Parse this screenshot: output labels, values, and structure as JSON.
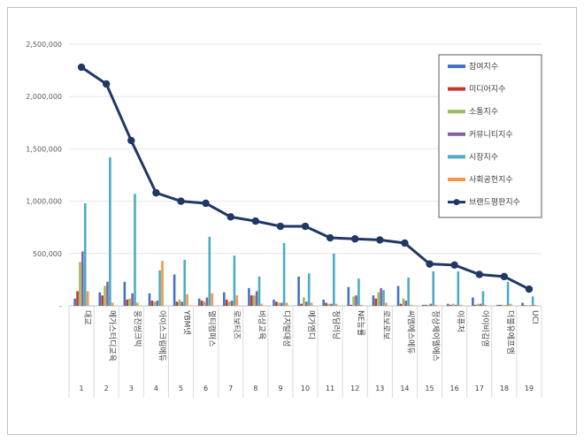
{
  "chart_data": {
    "type": "bar",
    "title": "",
    "xlabel": "",
    "ylabel": "",
    "ylim": [
      0,
      2500000
    ],
    "yticks": [
      "2,500,000",
      "2,000,000",
      "1,500,000",
      "1,000,000",
      "500,000",
      "-"
    ],
    "grid": true,
    "legend_position": "top-right",
    "ranks": [
      "1",
      "2",
      "3",
      "4",
      "5",
      "6",
      "7",
      "8",
      "9",
      "10",
      "11",
      "12",
      "13",
      "14",
      "15",
      "16",
      "17",
      "18",
      "19"
    ],
    "categories": [
      "대교",
      "메가스터디교육",
      "웅진씽크빅",
      "아이스크림에듀",
      "YBM넷",
      "멀티캠퍼스",
      "로보티즈",
      "비상교육",
      "디지털대성",
      "메가엠디",
      "청담러닝",
      "NE능률",
      "로보로보",
      "씨엠에스에듀",
      "정상제이엘에스",
      "이퓨처",
      "아이비김영",
      "더블유에프엠",
      "UCI"
    ],
    "series": [
      {
        "name": "참여지수",
        "color": "#4472c4",
        "values": [
          70000,
          130000,
          230000,
          120000,
          300000,
          70000,
          130000,
          170000,
          60000,
          280000,
          60000,
          180000,
          100000,
          190000,
          10000,
          20000,
          80000,
          10000,
          30000
        ]
      },
      {
        "name": "미디어지수",
        "color": "#c0392b",
        "values": [
          140000,
          100000,
          60000,
          50000,
          40000,
          50000,
          60000,
          100000,
          40000,
          20000,
          30000,
          10000,
          70000,
          20000,
          10000,
          10000,
          10000,
          10000,
          5000
        ]
      },
      {
        "name": "소통지수",
        "color": "#9bbb59",
        "values": [
          420000,
          190000,
          70000,
          40000,
          60000,
          40000,
          40000,
          100000,
          30000,
          80000,
          20000,
          90000,
          130000,
          70000,
          10000,
          20000,
          20000,
          10000,
          5000
        ]
      },
      {
        "name": "커뮤니티지수",
        "color": "#8064a2",
        "values": [
          520000,
          230000,
          120000,
          50000,
          40000,
          80000,
          50000,
          140000,
          30000,
          40000,
          20000,
          100000,
          170000,
          50000,
          20000,
          10000,
          20000,
          5000,
          5000
        ]
      },
      {
        "name": "시장지수",
        "color": "#4bacc6",
        "values": [
          980000,
          1420000,
          1070000,
          340000,
          440000,
          660000,
          480000,
          280000,
          600000,
          310000,
          500000,
          260000,
          150000,
          270000,
          330000,
          330000,
          140000,
          230000,
          90000
        ]
      },
      {
        "name": "사회공헌지수",
        "color": "#f79646",
        "values": [
          140000,
          30000,
          30000,
          430000,
          110000,
          120000,
          100000,
          20000,
          30000,
          30000,
          20000,
          10000,
          30000,
          10000,
          10000,
          10000,
          10000,
          20000,
          10000
        ]
      }
    ],
    "line": {
      "name": "브랜드평판지수",
      "color": "#1f3864",
      "values": [
        2280000,
        2120000,
        1580000,
        1080000,
        1000000,
        980000,
        850000,
        810000,
        760000,
        760000,
        650000,
        640000,
        630000,
        600000,
        400000,
        390000,
        300000,
        280000,
        160000
      ]
    }
  }
}
